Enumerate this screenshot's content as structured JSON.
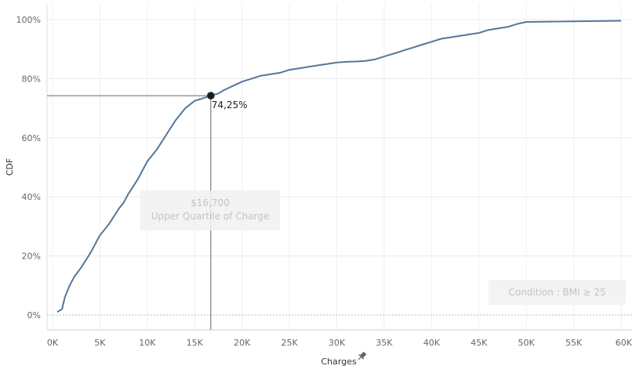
{
  "chart_data": {
    "type": "line",
    "xlabel": "Charges",
    "ylabel": "CDF",
    "xlim": [
      0,
      60000
    ],
    "ylim": [
      0,
      1
    ],
    "x_ticks": [
      "0K",
      "5K",
      "10K",
      "15K",
      "20K",
      "25K",
      "30K",
      "35K",
      "40K",
      "45K",
      "50K",
      "55K",
      "60K"
    ],
    "y_ticks": [
      "0%",
      "20%",
      "40%",
      "60%",
      "80%",
      "100%"
    ],
    "grid": true,
    "series": [
      {
        "color": "#55779a",
        "x": [
          500,
          1000,
          1300,
          1800,
          2300,
          3000,
          4000,
          5000,
          5500,
          6000,
          7000,
          7500,
          8000,
          9000,
          10000,
          11000,
          12000,
          13000,
          14000,
          15000,
          16000,
          16700,
          17500,
          18000,
          19000,
          20000,
          21000,
          22000,
          23000,
          24000,
          25000,
          26000,
          27000,
          28000,
          29000,
          30000,
          31000,
          32000,
          33000,
          34000,
          35000,
          36000,
          37000,
          38000,
          39000,
          40000,
          41000,
          42000,
          43000,
          44000,
          45000,
          46000,
          47000,
          48000,
          49000,
          50000,
          55000,
          60000
        ],
        "y": [
          0.01,
          0.02,
          0.06,
          0.1,
          0.13,
          0.16,
          0.21,
          0.27,
          0.29,
          0.31,
          0.36,
          0.38,
          0.41,
          0.46,
          0.52,
          0.56,
          0.61,
          0.66,
          0.7,
          0.725,
          0.735,
          0.7425,
          0.75,
          0.76,
          0.775,
          0.79,
          0.8,
          0.81,
          0.815,
          0.82,
          0.83,
          0.835,
          0.84,
          0.845,
          0.85,
          0.855,
          0.857,
          0.858,
          0.86,
          0.865,
          0.875,
          0.885,
          0.895,
          0.905,
          0.915,
          0.925,
          0.935,
          0.94,
          0.945,
          0.95,
          0.955,
          0.965,
          0.97,
          0.975,
          0.985,
          0.992,
          0.994,
          0.996
        ]
      }
    ],
    "marker": {
      "x": 16700,
      "y": 0.7425,
      "label": "74,25%"
    },
    "annotations": [
      {
        "title": "$16,700",
        "subtitle": "Upper Quartile of Charge"
      },
      {
        "text": "Condition : BMI ≥ 25"
      }
    ]
  },
  "icons": {
    "xlabel_icon": "pin-icon"
  }
}
